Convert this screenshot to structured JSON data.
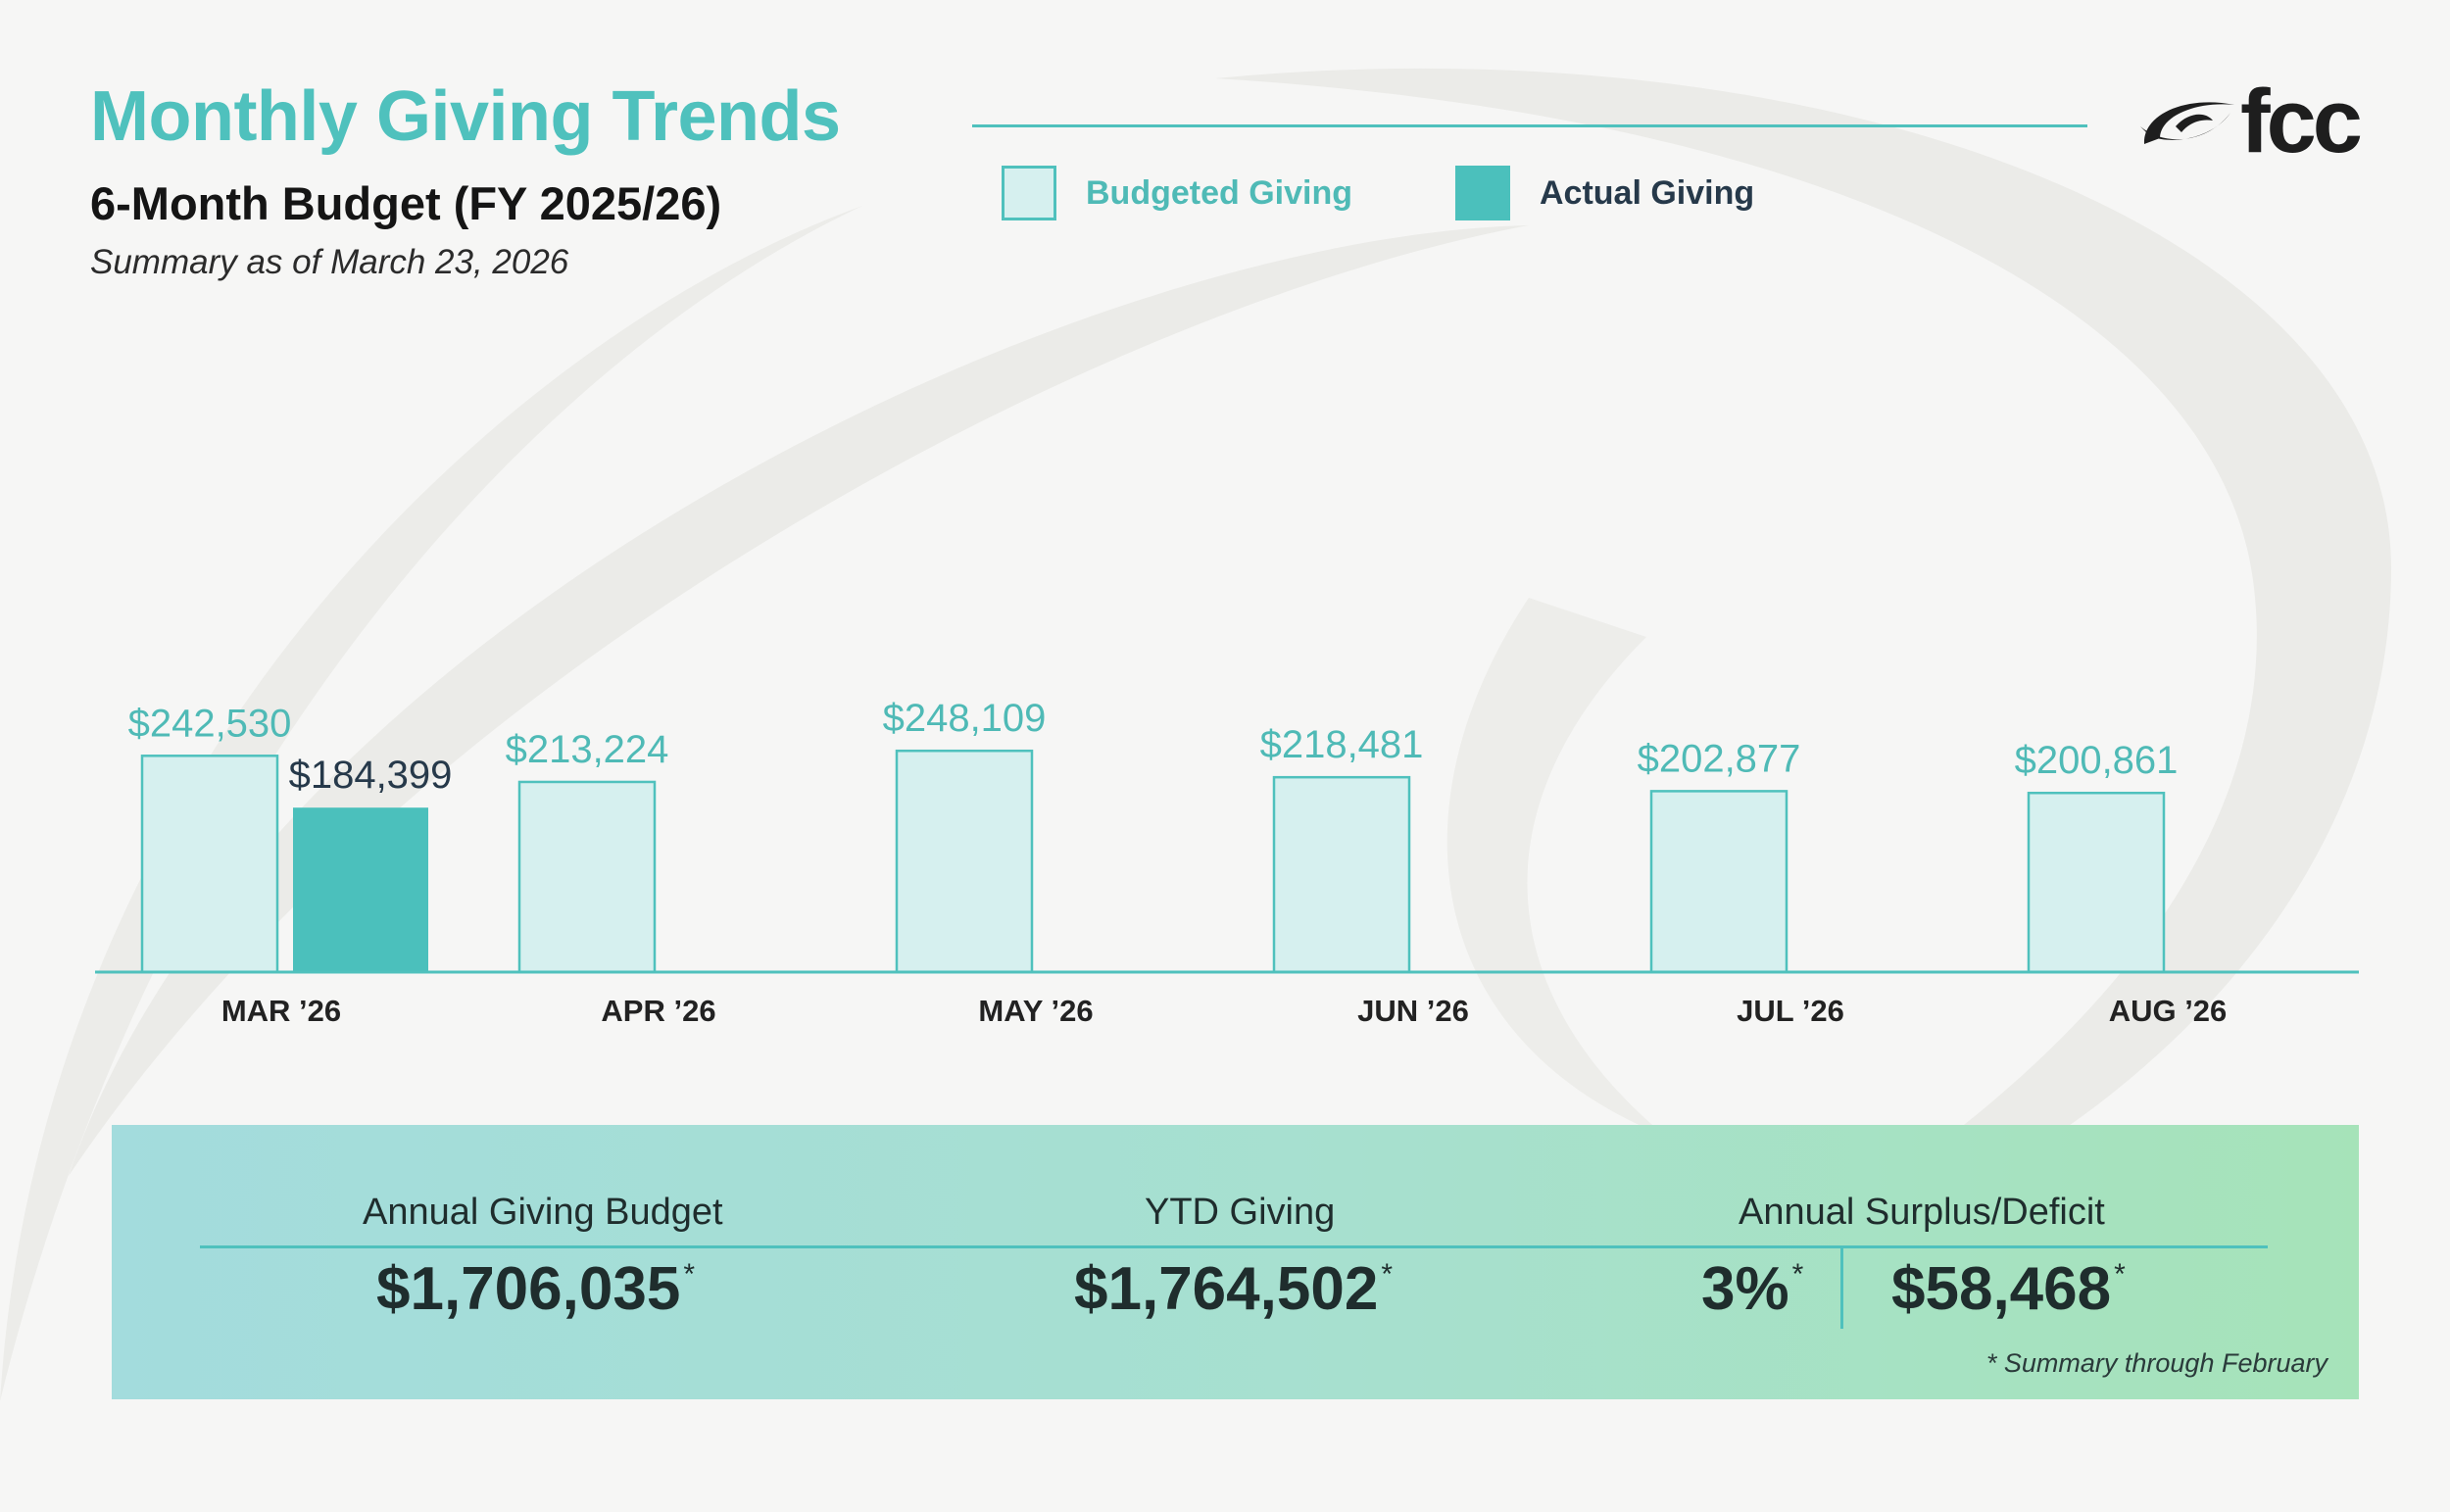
{
  "header": {
    "title": "Monthly Giving Trends",
    "subtitle": "6-Month Budget (FY 2025/26)",
    "summary_date": "Summary as of March 23, 2026"
  },
  "legend": {
    "budgeted_label": "Budgeted Giving",
    "actual_label": "Actual Giving"
  },
  "logo": {
    "text": "fcc"
  },
  "colors": {
    "accent": "#4fc1bd",
    "budget_fill": "#d6f0ef",
    "budget_stroke": "#4fc1bd",
    "actual_fill": "#4bc0bc",
    "budget_label": "#4fbab6",
    "actual_label": "#26394a",
    "axis_label": "#222222"
  },
  "chart_data": {
    "type": "bar",
    "title": "Monthly Giving Trends",
    "categories": [
      "MAR ’26",
      "APR ’26",
      "MAY ’26",
      "JUN ’26",
      "JUL ’26",
      "AUG ’26"
    ],
    "series": [
      {
        "name": "Budgeted Giving",
        "values": [
          242530,
          213224,
          248109,
          218481,
          202877,
          200861
        ],
        "labels": [
          "$242,530",
          "$213,224",
          "$248,109",
          "$218,481",
          "$202,877",
          "$200,861"
        ]
      },
      {
        "name": "Actual Giving",
        "values": [
          184399,
          null,
          null,
          null,
          null,
          null
        ],
        "labels": [
          "$184,399",
          null,
          null,
          null,
          null,
          null
        ]
      }
    ],
    "ylim": [
      0,
      260000
    ],
    "grid": false,
    "legend": "top"
  },
  "summary": {
    "annual_budget": {
      "label": "Annual Giving Budget",
      "value": "$1,706,035"
    },
    "ytd_giving": {
      "label": "YTD Giving",
      "value": "$1,764,502"
    },
    "surplus": {
      "label": "Annual Surplus/Deficit",
      "percent": "3%",
      "value": "$58,468"
    },
    "asterisk": "*",
    "footnote": "*  Summary through February"
  }
}
